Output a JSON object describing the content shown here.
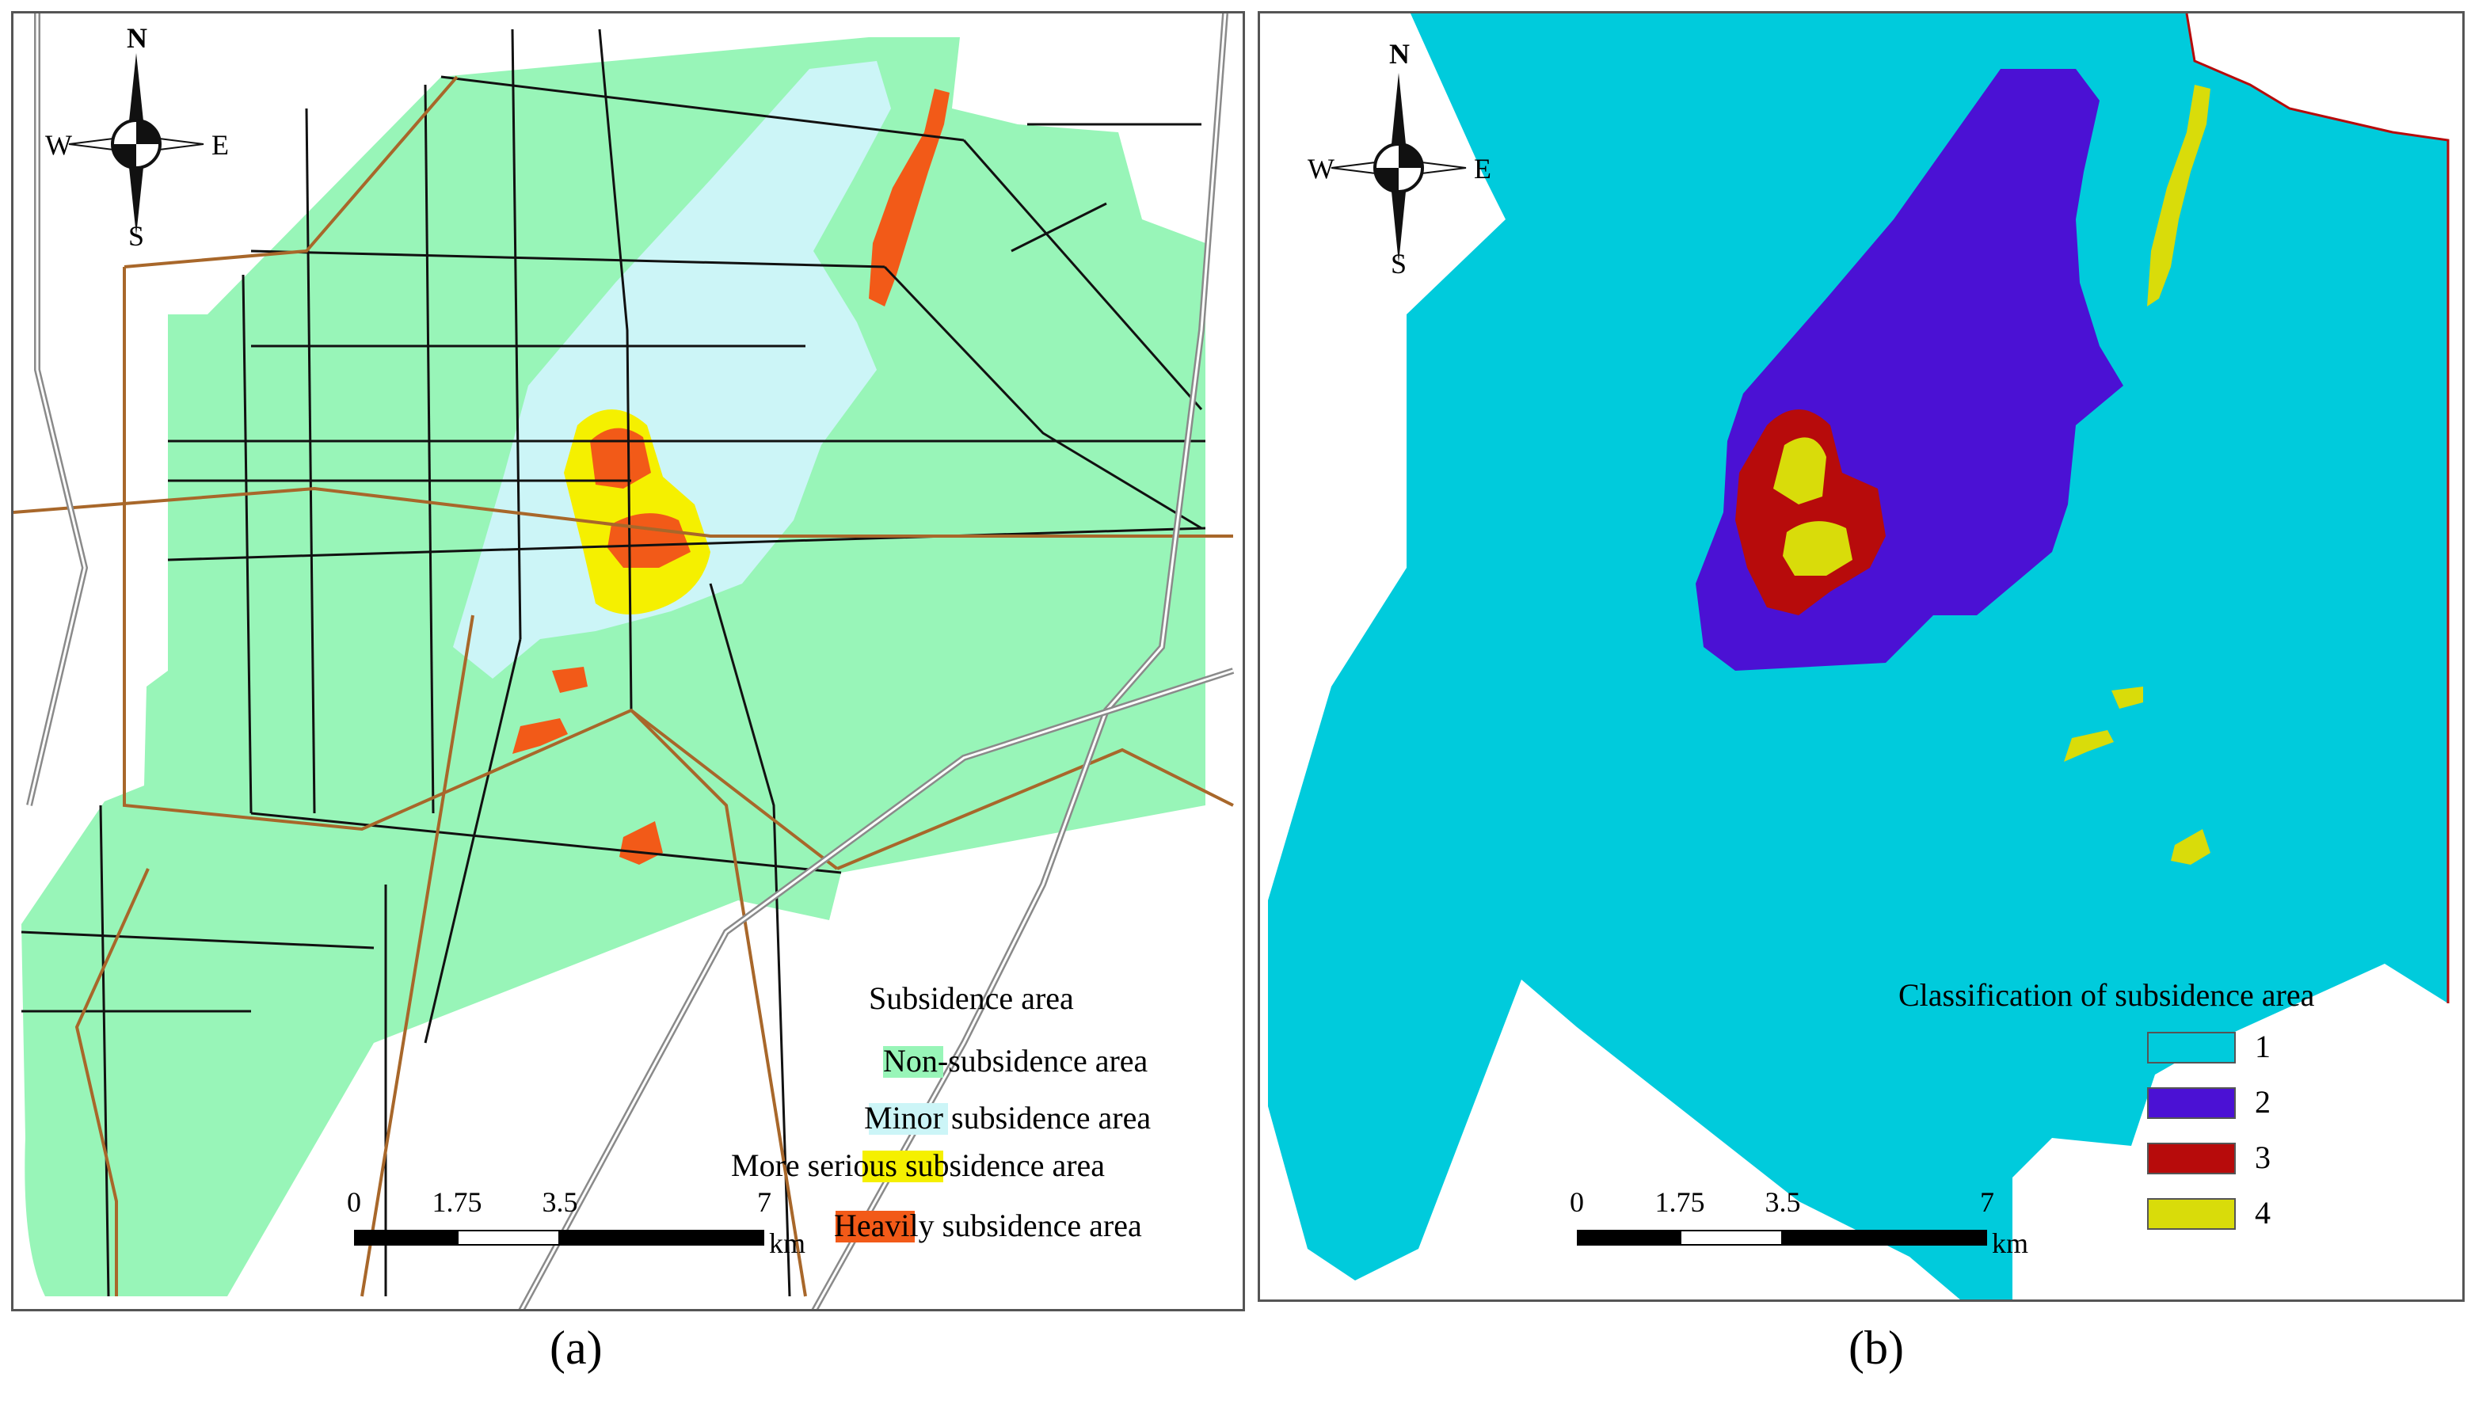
{
  "panels": [
    {
      "id": "a",
      "label": "(a)",
      "compass": {
        "n": "N",
        "s": "S",
        "e": "E",
        "w": "W"
      },
      "legend": {
        "title": "Subsidence area",
        "items": [
          {
            "label": "Non-subsidence area",
            "color": "#98f5b8"
          },
          {
            "label": "Minor subsidence area",
            "color": "#ccf5f7"
          },
          {
            "label": "More serious subsidence area",
            "color": "#f5f000"
          },
          {
            "label": "Heavily subsidence area",
            "color": "#f25a18"
          }
        ]
      },
      "scale": {
        "ticks": [
          "0",
          "1.75",
          "3.5",
          "7"
        ],
        "unit": "km"
      }
    },
    {
      "id": "b",
      "label": "(b)",
      "compass": {
        "n": "N",
        "s": "S",
        "e": "E",
        "w": "W"
      },
      "legend": {
        "title": "Classification of subsidence area",
        "items": [
          {
            "label": "1",
            "color": "#00cbdc"
          },
          {
            "label": "2",
            "color": "#4b11d4"
          },
          {
            "label": "3",
            "color": "#b70b0b"
          },
          {
            "label": "4",
            "color": "#d9dc0a"
          }
        ]
      },
      "scale": {
        "ticks": [
          "0",
          "1.75",
          "3.5",
          "7"
        ],
        "unit": "km"
      }
    }
  ]
}
